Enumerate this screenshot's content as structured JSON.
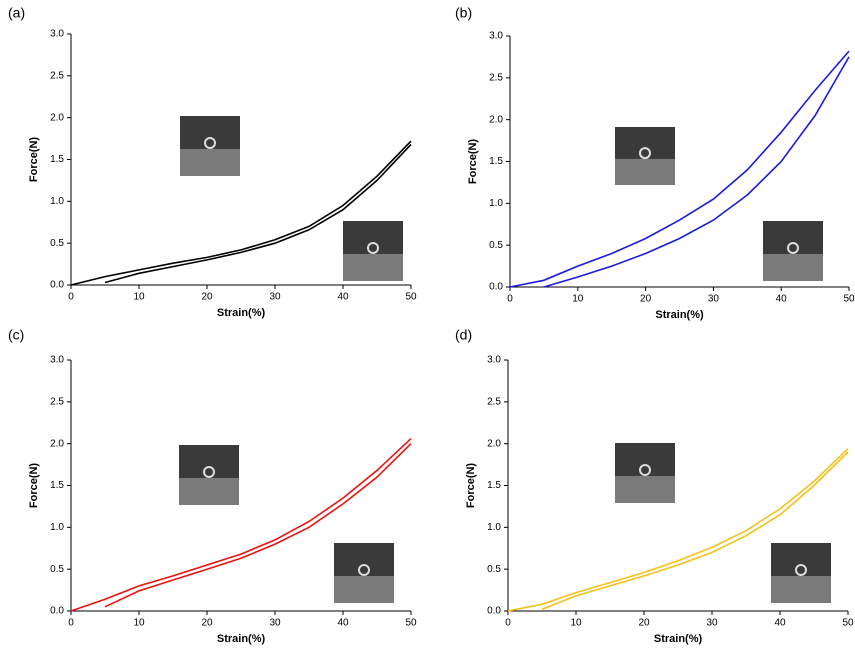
{
  "chart_data": [
    {
      "type": "line",
      "panel_label": "(a)",
      "xlabel": "Strain(%)",
      "ylabel": "Force(N)",
      "x": [
        0,
        5,
        10,
        15,
        20,
        25,
        30,
        35,
        40,
        45,
        50
      ],
      "series": [
        {
          "color": "#000000",
          "values": [
            0,
            0.1,
            0.18,
            0.26,
            0.33,
            0.42,
            0.54,
            0.7,
            0.95,
            1.3,
            1.72
          ]
        },
        {
          "color": "#000000",
          "values": [
            null,
            0.03,
            0.14,
            0.22,
            0.3,
            0.39,
            0.5,
            0.66,
            0.9,
            1.25,
            1.68
          ]
        }
      ],
      "xlim": [
        0,
        50
      ],
      "xticks": [
        0,
        10,
        20,
        30,
        40,
        50
      ],
      "ylim": [
        0,
        3
      ],
      "yticks": [
        {
          "value": 0,
          "label": "0.0"
        },
        {
          "value": 0.5,
          "label": "0.5"
        },
        {
          "value": 1,
          "label": "1.0"
        },
        {
          "value": 1.5,
          "label": "1.5"
        },
        {
          "value": 2,
          "label": "2.0"
        },
        {
          "value": 2.5,
          "label": "2.5"
        },
        {
          "value": 3,
          "label": "3.0"
        }
      ]
    },
    {
      "type": "line",
      "panel_label": "(b)",
      "xlabel": "Strain(%)",
      "ylabel": "Force(N)",
      "x": [
        0,
        5,
        10,
        15,
        20,
        25,
        30,
        35,
        40,
        45,
        50
      ],
      "series": [
        {
          "color": "#1a1ae0",
          "values": [
            0,
            0.08,
            0.25,
            0.4,
            0.58,
            0.8,
            1.05,
            1.4,
            1.85,
            2.35,
            2.82
          ]
        },
        {
          "color": "#1a1ae0",
          "values": [
            null,
            0,
            0.12,
            0.25,
            0.4,
            0.58,
            0.8,
            1.1,
            1.5,
            2.05,
            2.75
          ]
        }
      ],
      "xlim": [
        0,
        50
      ],
      "xticks": [
        0,
        10,
        20,
        30,
        40,
        50
      ],
      "ylim": [
        0,
        3
      ],
      "yticks": [
        {
          "value": 0,
          "label": "0.0"
        },
        {
          "value": 0.5,
          "label": "0.5"
        },
        {
          "value": 1,
          "label": "1.0"
        },
        {
          "value": 1.5,
          "label": "1.5"
        },
        {
          "value": 2,
          "label": "2.0"
        },
        {
          "value": 2.5,
          "label": "2.5"
        },
        {
          "value": 3,
          "label": "3.0"
        }
      ]
    },
    {
      "type": "line",
      "panel_label": "(c)",
      "xlabel": "Strain(%)",
      "ylabel": "Force(N)",
      "x": [
        0,
        5,
        10,
        15,
        20,
        25,
        30,
        35,
        40,
        45,
        50
      ],
      "series": [
        {
          "color": "#ee1111",
          "values": [
            0,
            0.14,
            0.3,
            0.42,
            0.55,
            0.68,
            0.85,
            1.07,
            1.35,
            1.68,
            2.06
          ]
        },
        {
          "color": "#ee1111",
          "values": [
            null,
            0.05,
            0.24,
            0.37,
            0.5,
            0.63,
            0.8,
            1.0,
            1.28,
            1.6,
            2.0
          ]
        }
      ],
      "xlim": [
        0,
        50
      ],
      "xticks": [
        0,
        10,
        20,
        30,
        40,
        50
      ],
      "ylim": [
        0,
        3
      ],
      "yticks": [
        {
          "value": 0,
          "label": "0.0"
        },
        {
          "value": 0.5,
          "label": "0.5"
        },
        {
          "value": 1,
          "label": "1.0"
        },
        {
          "value": 1.5,
          "label": "1.5"
        },
        {
          "value": 2,
          "label": "2.0"
        },
        {
          "value": 2.5,
          "label": "2.5"
        },
        {
          "value": 3,
          "label": "3.0"
        }
      ]
    },
    {
      "type": "line",
      "panel_label": "(d)",
      "xlabel": "Strain(%)",
      "ylabel": "Force(N)",
      "x": [
        0,
        5,
        10,
        15,
        20,
        25,
        30,
        35,
        40,
        45,
        50
      ],
      "series": [
        {
          "color": "#f2c21b",
          "values": [
            0,
            0.08,
            0.22,
            0.34,
            0.46,
            0.6,
            0.76,
            0.96,
            1.22,
            1.55,
            1.94
          ]
        },
        {
          "color": "#f2c21b",
          "values": [
            null,
            0.02,
            0.18,
            0.3,
            0.42,
            0.55,
            0.7,
            0.9,
            1.15,
            1.5,
            1.9
          ]
        }
      ],
      "xlim": [
        0,
        50
      ],
      "xticks": [
        0,
        10,
        20,
        30,
        40,
        50
      ],
      "ylim": [
        0,
        3
      ],
      "yticks": [
        {
          "value": 0,
          "label": "0.0"
        },
        {
          "value": 0.5,
          "label": "0.5"
        },
        {
          "value": 1,
          "label": "1.0"
        },
        {
          "value": 1.5,
          "label": "1.5"
        },
        {
          "value": 2,
          "label": "2.0"
        },
        {
          "value": 2.5,
          "label": "2.5"
        },
        {
          "value": 3,
          "label": "3.0"
        }
      ]
    }
  ]
}
